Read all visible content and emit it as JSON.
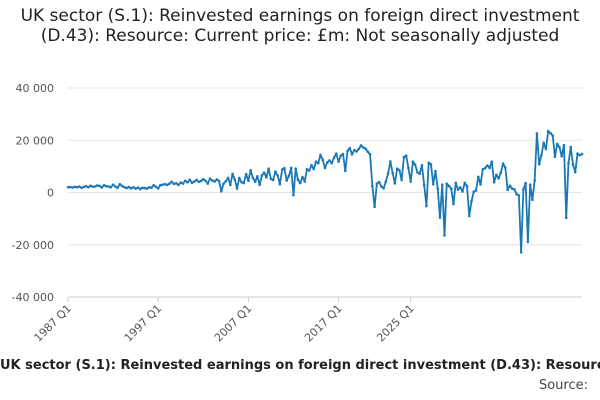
{
  "chart_data": {
    "type": "line",
    "title": "UK sector (S.1): Reinvested earnings on foreign direct investment (D.43): Resource: Current price: £m: Not seasonally adjusted",
    "ylim": [
      -40000,
      40000
    ],
    "y_ticks": [
      40000,
      20000,
      0,
      -20000,
      -40000
    ],
    "y_tick_labels": [
      "40 000",
      "20 000",
      "0",
      "-20 000",
      "-40 000"
    ],
    "x_tick_labels": [
      "1987 Q1",
      "1997 Q1",
      "2007 Q1",
      "2017 Q1",
      "2025 Q1"
    ],
    "grid": true,
    "series": [
      {
        "name": "UK sector (S.1): Reinvested earnings on foreign direct investment (D.43): Resource: Current price: £m: Not seasonally adjusted",
        "color": "#1a78b4",
        "values": [
          2000,
          2100,
          1900,
          2200,
          2000,
          2300,
          1800,
          2100,
          2400,
          2000,
          2600,
          2200,
          2300,
          2700,
          2500,
          1900,
          2800,
          2400,
          2300,
          2000,
          3000,
          2300,
          1800,
          3200,
          2500,
          2000,
          1700,
          2100,
          1600,
          2000,
          1500,
          1900,
          1300,
          1800,
          1700,
          1500,
          2000,
          1800,
          2800,
          2200,
          1600,
          2800,
          3000,
          3200,
          2900,
          3400,
          4100,
          3300,
          3500,
          2900,
          3800,
          3400,
          4500,
          3900,
          4900,
          3700,
          4200,
          4800,
          4100,
          4400,
          5100,
          4500,
          3400,
          5300,
          4600,
          4200,
          5000,
          4400,
          500,
          3400,
          4300,
          5600,
          2900,
          7100,
          5000,
          1500,
          5600,
          3900,
          3600,
          7000,
          4500,
          8500,
          5600,
          4100,
          6200,
          2900,
          6500,
          7600,
          5800,
          9100,
          5200,
          4800,
          8000,
          6500,
          3200,
          8800,
          9300,
          4600,
          6400,
          9400,
          -1000,
          9100,
          4900,
          3600,
          5900,
          4200,
          8900,
          8400,
          10400,
          9000,
          11800,
          11200,
          14400,
          12500,
          9400,
          11500,
          12300,
          11200,
          13300,
          14900,
          11800,
          14100,
          14700,
          8300,
          15900,
          17000,
          14600,
          16200,
          15700,
          16700,
          18000,
          17200,
          16800,
          15600,
          14600,
          2500,
          -5500,
          3400,
          4000,
          2300,
          1600,
          4200,
          7300,
          11900,
          7500,
          3500,
          9100,
          8600,
          4800,
          13500,
          14100,
          9400,
          4200,
          11800,
          10600,
          7700,
          7200,
          10400,
          2800,
          -5200,
          11400,
          10800,
          3200,
          8200,
          1500,
          -9600,
          3000,
          -16400,
          3400,
          2500,
          1500,
          -4400,
          3700,
          1100,
          2000,
          400,
          3700,
          2400,
          -9000,
          -3300,
          300,
          800,
          6000,
          3100,
          8900,
          9300,
          10300,
          9400,
          11800,
          3900,
          6800,
          5400,
          7600,
          11100,
          9500,
          1000,
          2600,
          1500,
          1200,
          -600,
          -1100,
          -22900,
          1200,
          3600,
          -18900,
          3000,
          -2800,
          4600,
          22600,
          10800,
          14200,
          19000,
          16600,
          23500,
          22700,
          21800,
          13700,
          18600,
          17300,
          13900,
          18100,
          -9700,
          11200,
          17400,
          10700,
          7800,
          14900,
          14300,
          14700
        ]
      }
    ],
    "source_label": "Source:"
  }
}
